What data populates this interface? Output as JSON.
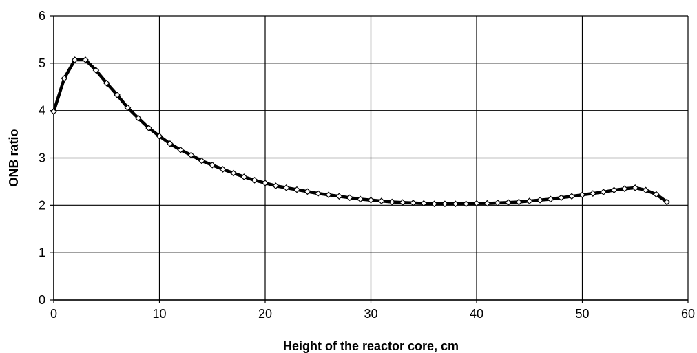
{
  "chart_data": {
    "type": "line",
    "title": "",
    "xlabel": "Height of the reactor core, cm",
    "ylabel": "ONB ratio",
    "xlim": [
      0,
      60
    ],
    "ylim": [
      0,
      6
    ],
    "xticks": [
      "0",
      "10",
      "20",
      "30",
      "40",
      "50",
      "60"
    ],
    "yticks": [
      "0",
      "1",
      "2",
      "3",
      "4",
      "5",
      "6"
    ],
    "grid": true,
    "legend": "none",
    "marker": "diamond",
    "line_color": "#000000",
    "marker_fill": "#ffffff",
    "series": [
      {
        "x": [
          0,
          1,
          2,
          3,
          4,
          5,
          6,
          7,
          8,
          9,
          10,
          11,
          12,
          13,
          14,
          15,
          16,
          17,
          18,
          19,
          20,
          21,
          22,
          23,
          24,
          25,
          26,
          27,
          28,
          29,
          30,
          31,
          32,
          33,
          34,
          35,
          36,
          37,
          38,
          39,
          40,
          41,
          42,
          43,
          44,
          45,
          46,
          47,
          48,
          49,
          50,
          51,
          52,
          53,
          54,
          55,
          56,
          57,
          58
        ],
        "y": [
          3.98,
          4.68,
          5.07,
          5.07,
          4.85,
          4.58,
          4.33,
          4.06,
          3.84,
          3.63,
          3.46,
          3.3,
          3.17,
          3.06,
          2.94,
          2.85,
          2.76,
          2.68,
          2.6,
          2.53,
          2.47,
          2.41,
          2.37,
          2.33,
          2.29,
          2.25,
          2.22,
          2.19,
          2.16,
          2.13,
          2.11,
          2.09,
          2.07,
          2.06,
          2.05,
          2.04,
          2.03,
          2.03,
          2.03,
          2.03,
          2.04,
          2.04,
          2.05,
          2.06,
          2.07,
          2.09,
          2.11,
          2.13,
          2.16,
          2.19,
          2.22,
          2.25,
          2.28,
          2.32,
          2.35,
          2.37,
          2.32,
          2.23,
          2.07
        ]
      }
    ]
  }
}
